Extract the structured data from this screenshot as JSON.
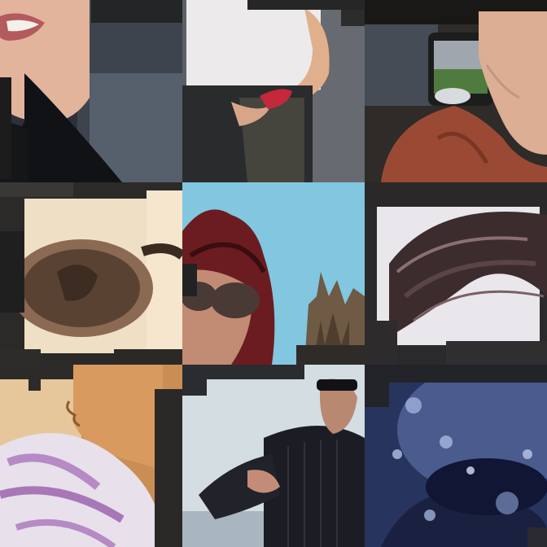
{
  "collage": {
    "tiles": [
      {
        "subject": "smiling-mouth-closeup",
        "background_color": "#3a3f47",
        "accent_color": "#e8a98e"
      },
      {
        "subject": "person-white-tshirt-red-bandana",
        "background_color": "#5d5f66",
        "accent_color": "#c4283a"
      },
      {
        "subject": "chin-rust-jacket-car-interior",
        "background_color": "#3b3530",
        "accent_color": "#b45a3c"
      },
      {
        "subject": "large-brown-sunglasses-closeup",
        "background_color": "#efe0c6",
        "accent_color": "#5b4536"
      },
      {
        "subject": "red-hair-sunglasses-trees-sky",
        "background_color": "#7fc3dd",
        "accent_color": "#7a1e22"
      },
      {
        "subject": "windblown-dark-hair-closeup",
        "background_color": "#e8e6ec",
        "accent_color": "#3a2a2c"
      },
      {
        "subject": "profile-striped-shirt-warm-light",
        "background_color": "#d59a5a",
        "accent_color": "#b68ac4"
      },
      {
        "subject": "pinstripe-shirt-pointing",
        "background_color": "#cfd9de",
        "accent_color": "#1e1e26"
      },
      {
        "subject": "underwater-bubbles-goggles",
        "background_color": "#2a3a66",
        "accent_color": "#9fb6e0"
      }
    ]
  }
}
